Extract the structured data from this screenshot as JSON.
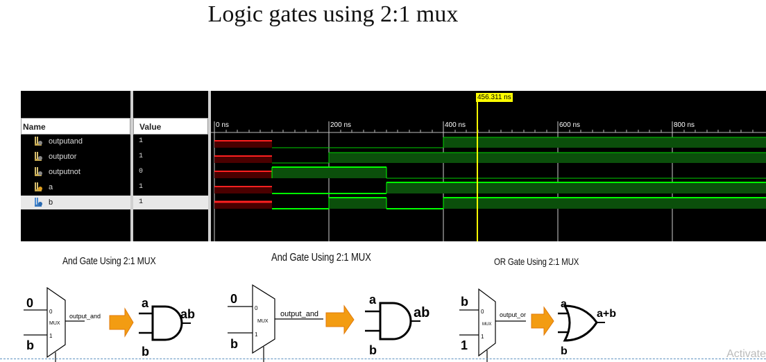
{
  "page_title": "Logic gates  using 2:1 mux",
  "waveform": {
    "name_header": "Name",
    "value_header": "Value",
    "cursor_time": "456.311 ns",
    "time_ticks": [
      "0 ns",
      "200 ns",
      "400 ns",
      "600 ns",
      "800 ns"
    ],
    "signals": [
      {
        "name": "outputand",
        "value": "1"
      },
      {
        "name": "outputor",
        "value": "1"
      },
      {
        "name": "outputnot",
        "value": "0"
      },
      {
        "name": "a",
        "value": "1"
      },
      {
        "name": "b",
        "value": "1"
      }
    ],
    "colors": {
      "high": "#00ff00",
      "fill": "#0b4f0b",
      "undefined": "#ff0000",
      "cursor": "#ffff00"
    }
  },
  "diagrams": [
    {
      "title": "And Gate Using 2:1 MUX",
      "in0": "0",
      "in1": "b",
      "sel0": "0",
      "sel1": "1",
      "mux": "MUX",
      "out": "output_and",
      "ga": "a",
      "gb": "b",
      "gout": "ab"
    },
    {
      "title": "And Gate Using 2:1 MUX",
      "in0": "0",
      "in1": "b",
      "sel0": "0",
      "sel1": "1",
      "mux": "MUX",
      "out": "output_and",
      "ga": "a",
      "gb": "b",
      "gout": "ab"
    },
    {
      "title": "OR Gate Using 2:1 MUX",
      "in0": "b",
      "in1": "1",
      "sel0": "0",
      "sel1": "1",
      "mux": "MUX",
      "out": "output_or",
      "ga": "a",
      "gb": "b",
      "gout": "a+b"
    }
  ],
  "watermark": "Activate"
}
